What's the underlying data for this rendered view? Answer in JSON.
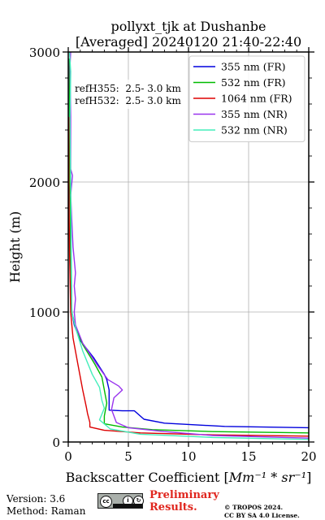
{
  "chart_data": {
    "type": "line",
    "title_line1": "pollyxt_tjk at Dushanbe",
    "title_line2": "[Averaged] 20240120 21:40-22:40",
    "xlabel_prefix": "Backscatter Coefficient [",
    "xlabel_math": "Mm⁻¹ * sr⁻¹",
    "xlabel_suffix": "]",
    "ylabel": "Height (m)",
    "xlim": [
      0,
      20
    ],
    "ylim": [
      0,
      3000
    ],
    "x_ticks": [
      0,
      5,
      10,
      15,
      20
    ],
    "y_ticks": [
      0,
      1000,
      2000,
      3000
    ],
    "grid": true,
    "legend_position": "top-right",
    "annotation_lines": [
      "refH355:  2.5- 3.0 km",
      "refH532:  2.5- 3.0 km"
    ],
    "series": [
      {
        "name": "355 nm (FR)",
        "color": "#0000dd",
        "points": [
          [
            20,
            110
          ],
          [
            13,
            120
          ],
          [
            8,
            145
          ],
          [
            6.3,
            175
          ],
          [
            5.5,
            240
          ],
          [
            4.5,
            240
          ],
          [
            3.4,
            245
          ],
          [
            3.4,
            400
          ],
          [
            3.2,
            480
          ],
          [
            3.0,
            520
          ],
          [
            2.1,
            650
          ],
          [
            1.0,
            780
          ],
          [
            0.5,
            900
          ],
          [
            0.3,
            1000
          ],
          [
            0.2,
            1500
          ],
          [
            0.15,
            2000
          ],
          [
            0.1,
            2500
          ],
          [
            0.1,
            2950
          ]
        ]
      },
      {
        "name": "532 nm (FR)",
        "color": "#00bb00",
        "points": [
          [
            20,
            70
          ],
          [
            12,
            80
          ],
          [
            7,
            95
          ],
          [
            4.5,
            115
          ],
          [
            3.0,
            140
          ],
          [
            3.0,
            200
          ],
          [
            3.2,
            300
          ],
          [
            3.0,
            400
          ],
          [
            2.8,
            500
          ],
          [
            2.2,
            600
          ],
          [
            1.2,
            750
          ],
          [
            0.6,
            880
          ],
          [
            0.3,
            1000
          ],
          [
            0.2,
            1500
          ],
          [
            0.15,
            2000
          ],
          [
            0.1,
            2500
          ],
          [
            0.1,
            2950
          ]
        ]
      },
      {
        "name": "1064 nm (FR)",
        "color": "#dd0000",
        "points": [
          [
            20,
            45
          ],
          [
            12,
            55
          ],
          [
            6,
            70
          ],
          [
            3.0,
            90
          ],
          [
            1.8,
            115
          ],
          [
            1.8,
            150
          ],
          [
            1.6,
            220
          ],
          [
            1.5,
            270
          ],
          [
            1.2,
            400
          ],
          [
            0.8,
            600
          ],
          [
            0.4,
            800
          ],
          [
            0.3,
            900
          ],
          [
            0.2,
            1000
          ],
          [
            0.1,
            1500
          ],
          [
            0.05,
            2000
          ],
          [
            0.05,
            2500
          ]
        ]
      },
      {
        "name": "355 nm (NR)",
        "color": "#9933ee",
        "points": [
          [
            20,
            30
          ],
          [
            12,
            50
          ],
          [
            8,
            80
          ],
          [
            5.0,
            110
          ],
          [
            4.0,
            150
          ],
          [
            3.6,
            250
          ],
          [
            3.8,
            340
          ],
          [
            4.5,
            400
          ],
          [
            4.2,
            430
          ],
          [
            3.3,
            480
          ],
          [
            2.5,
            580
          ],
          [
            1.2,
            760
          ],
          [
            0.6,
            900
          ],
          [
            0.5,
            1000
          ],
          [
            0.6,
            1100
          ],
          [
            0.5,
            1200
          ],
          [
            0.6,
            1300
          ],
          [
            0.5,
            1400
          ],
          [
            0.4,
            1500
          ],
          [
            0.3,
            1700
          ],
          [
            0.2,
            1900
          ],
          [
            0.35,
            2050
          ],
          [
            0.2,
            2100
          ],
          [
            0.2,
            2500
          ],
          [
            0.15,
            2900
          ],
          [
            0.2,
            3000
          ]
        ]
      },
      {
        "name": "532 nm (NR)",
        "color": "#44eebb",
        "points": [
          [
            20,
            20
          ],
          [
            12,
            35
          ],
          [
            6,
            60
          ],
          [
            3.5,
            100
          ],
          [
            2.6,
            170
          ],
          [
            3.0,
            260
          ],
          [
            2.8,
            320
          ],
          [
            2.6,
            420
          ],
          [
            2.0,
            520
          ],
          [
            1.2,
            700
          ],
          [
            0.6,
            880
          ],
          [
            0.3,
            1000
          ],
          [
            0.25,
            1500
          ],
          [
            0.2,
            2000
          ],
          [
            0.15,
            2500
          ],
          [
            0.2,
            2850
          ],
          [
            0.1,
            3000
          ]
        ]
      }
    ]
  },
  "footer": {
    "version": "Version: 3.6",
    "method": "Method: Raman",
    "preliminary_line1": "Preliminary",
    "preliminary_line2": "Results.",
    "copyright_line1": "© TROPOS 2024.",
    "copyright_line2": "CC BY SA 4.0 License."
  }
}
